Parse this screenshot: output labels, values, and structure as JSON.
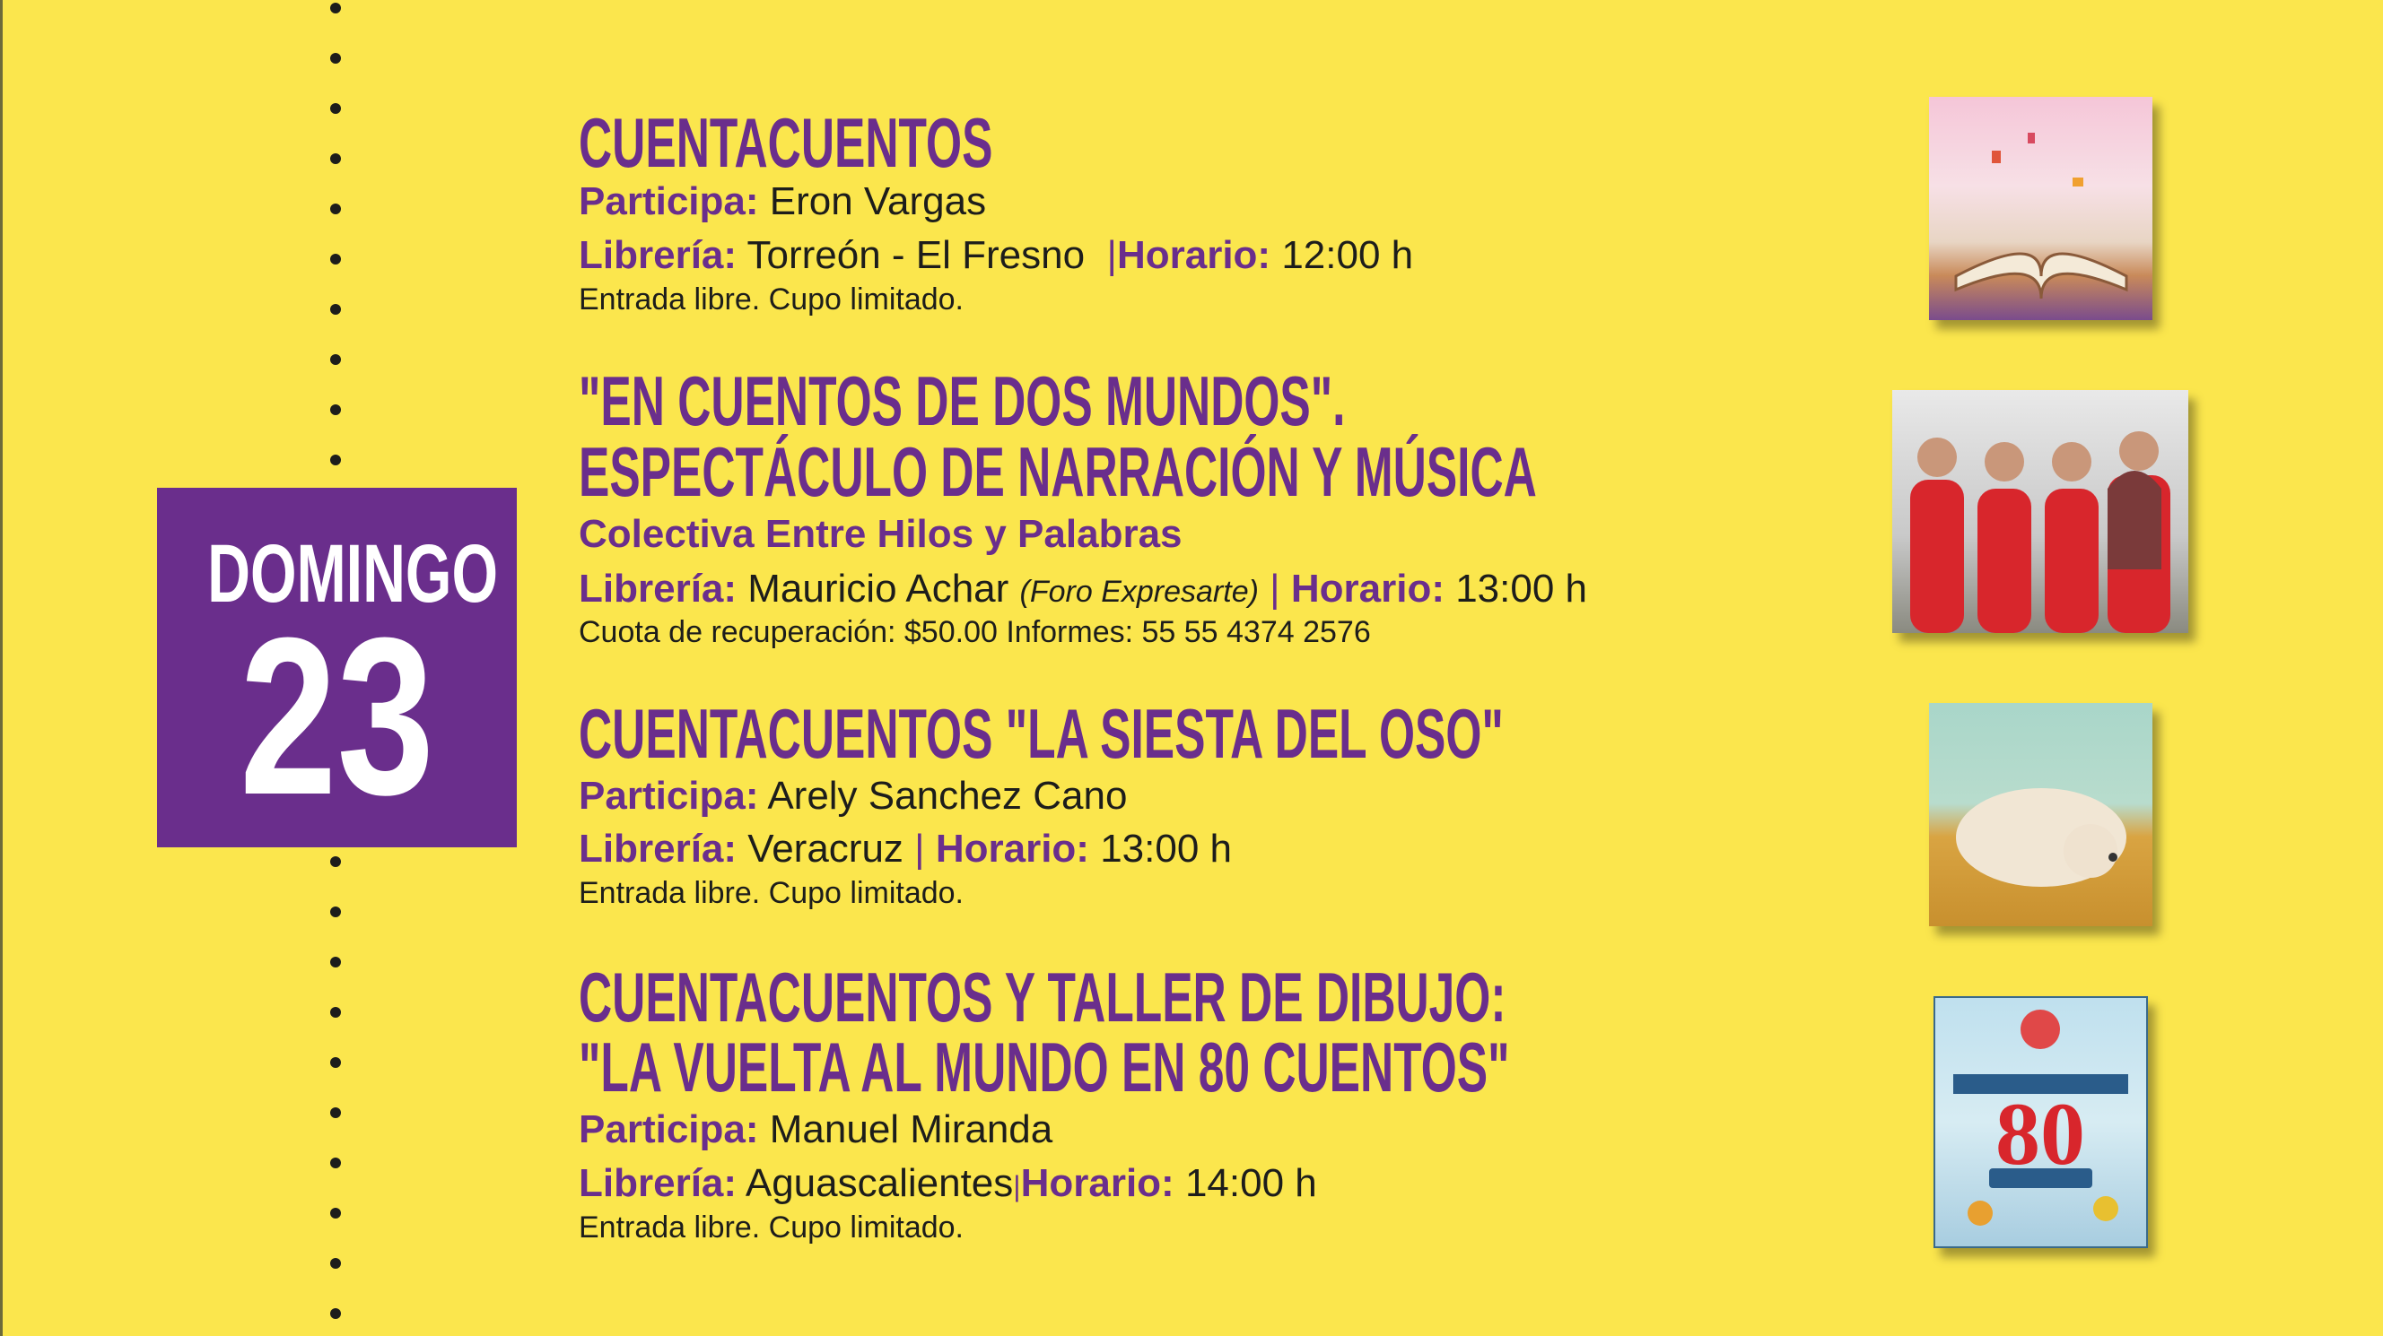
{
  "date": {
    "weekday": "DOMINGO",
    "day": "23"
  },
  "colors": {
    "background": "#fbe64d",
    "accent": "#6a2e8c",
    "text": "#1d1d1b"
  },
  "events": [
    {
      "title_lines": [
        "CUENTACUENTOS"
      ],
      "participa_label": "Participa:",
      "participa": "Eron Vargas",
      "libreria_label": "Librería:",
      "libreria": "Torreón - El Fresno",
      "horario_label": "Horario:",
      "horario": "12:00 h",
      "note": "Entrada libre. Cupo limitado.",
      "image": "open-book-illustration"
    },
    {
      "title_lines": [
        "\"EN CUENTOS DE DOS MUNDOS\".",
        "ESPECTÁCULO DE NARRACIÓN Y MÚSICA"
      ],
      "subtitle": "Colectiva Entre Hilos y Palabras",
      "libreria_label": "Librería:",
      "libreria": "Mauricio Achar",
      "libreria_note": "(Foro Expresarte)",
      "horario_label": "Horario:",
      "horario": "13:00 h",
      "note": "Cuota de recuperación: $50.00 Informes: 55 55 4374 2576",
      "image": "group-photo-women-red-dresses"
    },
    {
      "title_lines": [
        "CUENTACUENTOS \"LA SIESTA DEL OSO\""
      ],
      "participa_label": "Participa:",
      "participa": "Arely Sanchez Cano",
      "libreria_label": "Librería:",
      "libreria": "Veracruz",
      "horario_label": "Horario:",
      "horario": "13:00 h",
      "note": "Entrada libre. Cupo limitado.",
      "image": "sleeping-bear-illustration"
    },
    {
      "title_lines": [
        "CUENTACUENTOS Y TALLER DE DIBUJO:",
        "\"LA VUELTA AL MUNDO EN 80 CUENTOS\""
      ],
      "participa_label": "Participa:",
      "participa": "Manuel Miranda",
      "libreria_label": "Librería:",
      "libreria": "Aguascalientes",
      "horario_label": "Horario:",
      "horario": "14:00 h",
      "note": "Entrada libre. Cupo limitado.",
      "image": "book-cover-80-cuentos",
      "image_text": "LA VUELTA AL MUNDO EN 80 CUENTOS"
    }
  ]
}
